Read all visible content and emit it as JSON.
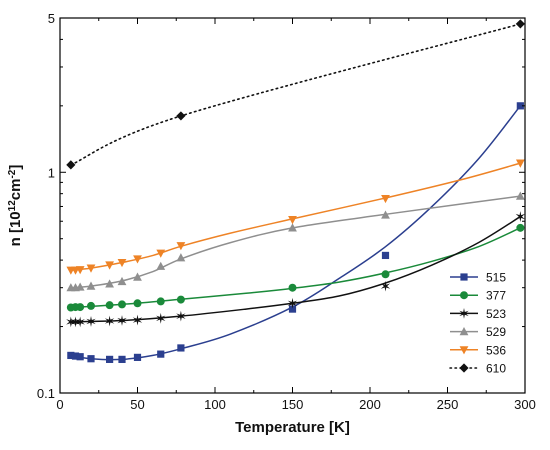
{
  "chart_data": {
    "type": "line",
    "title": "",
    "xlabel": "Temperature [K]",
    "ylabel_parts": {
      "base": "n [10",
      "sup1": "12",
      "mid": "cm",
      "sup2": "-2",
      "end": "]"
    },
    "xlim": [
      0,
      300
    ],
    "ylim": [
      0.1,
      5
    ],
    "yscale": "log",
    "x_ticks": [
      0,
      50,
      100,
      150,
      200,
      250,
      300
    ],
    "y_ticks": [
      {
        "value": 0.1,
        "label": "0.1"
      },
      {
        "value": 1,
        "label": "1"
      },
      {
        "value": 5,
        "label": "5"
      }
    ],
    "legend_position": "bottom-right",
    "series": [
      {
        "name": "515",
        "color": "#2b3f8f",
        "marker": "square",
        "line_style": "solid",
        "points": [
          [
            7,
            0.148
          ],
          [
            10,
            0.147
          ],
          [
            13,
            0.146
          ],
          [
            20,
            0.143
          ],
          [
            32,
            0.142
          ],
          [
            40,
            0.142
          ],
          [
            50,
            0.145
          ],
          [
            65,
            0.15
          ],
          [
            78,
            0.16
          ],
          [
            150,
            0.24
          ],
          [
            210,
            0.42
          ],
          [
            297,
            2.0
          ]
        ],
        "curve": [
          [
            7,
            0.148
          ],
          [
            20,
            0.143
          ],
          [
            40,
            0.142
          ],
          [
            60,
            0.148
          ],
          [
            80,
            0.16
          ],
          [
            110,
            0.185
          ],
          [
            150,
            0.245
          ],
          [
            180,
            0.33
          ],
          [
            210,
            0.46
          ],
          [
            240,
            0.7
          ],
          [
            270,
            1.15
          ],
          [
            297,
            2.0
          ]
        ]
      },
      {
        "name": "377",
        "color": "#1a8a3a",
        "marker": "circle",
        "line_style": "solid",
        "points": [
          [
            7,
            0.244
          ],
          [
            10,
            0.245
          ],
          [
            13,
            0.245
          ],
          [
            20,
            0.248
          ],
          [
            32,
            0.25
          ],
          [
            40,
            0.252
          ],
          [
            50,
            0.255
          ],
          [
            65,
            0.26
          ],
          [
            78,
            0.265
          ],
          [
            150,
            0.3
          ],
          [
            210,
            0.345
          ],
          [
            297,
            0.56
          ]
        ],
        "curve": [
          [
            7,
            0.244
          ],
          [
            40,
            0.252
          ],
          [
            78,
            0.266
          ],
          [
            120,
            0.283
          ],
          [
            150,
            0.298
          ],
          [
            180,
            0.318
          ],
          [
            210,
            0.35
          ],
          [
            240,
            0.395
          ],
          [
            270,
            0.46
          ],
          [
            297,
            0.56
          ]
        ]
      },
      {
        "name": "523",
        "color": "#111111",
        "marker": "star",
        "line_style": "solid",
        "points": [
          [
            7,
            0.21
          ],
          [
            10,
            0.21
          ],
          [
            13,
            0.21
          ],
          [
            20,
            0.211
          ],
          [
            32,
            0.212
          ],
          [
            40,
            0.213
          ],
          [
            50,
            0.214
          ],
          [
            65,
            0.218
          ],
          [
            78,
            0.223
          ],
          [
            150,
            0.255
          ],
          [
            210,
            0.305
          ],
          [
            297,
            0.63
          ]
        ],
        "curve": [
          [
            7,
            0.21
          ],
          [
            40,
            0.213
          ],
          [
            78,
            0.223
          ],
          [
            120,
            0.24
          ],
          [
            150,
            0.255
          ],
          [
            180,
            0.275
          ],
          [
            210,
            0.315
          ],
          [
            240,
            0.38
          ],
          [
            270,
            0.48
          ],
          [
            297,
            0.63
          ]
        ]
      },
      {
        "name": "529",
        "color": "#8f8f8f",
        "marker": "triangle-up",
        "line_style": "solid",
        "points": [
          [
            7,
            0.3
          ],
          [
            10,
            0.3
          ],
          [
            13,
            0.302
          ],
          [
            20,
            0.305
          ],
          [
            32,
            0.312
          ],
          [
            40,
            0.32
          ],
          [
            50,
            0.335
          ],
          [
            65,
            0.375
          ],
          [
            78,
            0.41
          ],
          [
            150,
            0.56
          ],
          [
            210,
            0.64
          ],
          [
            297,
            0.78
          ]
        ],
        "curve": [
          [
            7,
            0.3
          ],
          [
            20,
            0.305
          ],
          [
            40,
            0.322
          ],
          [
            60,
            0.355
          ],
          [
            78,
            0.405
          ],
          [
            110,
            0.48
          ],
          [
            150,
            0.56
          ],
          [
            210,
            0.645
          ],
          [
            260,
            0.72
          ],
          [
            297,
            0.78
          ]
        ]
      },
      {
        "name": "536",
        "color": "#ee8326",
        "marker": "triangle-down",
        "line_style": "solid",
        "points": [
          [
            7,
            0.36
          ],
          [
            10,
            0.36
          ],
          [
            13,
            0.362
          ],
          [
            20,
            0.368
          ],
          [
            32,
            0.38
          ],
          [
            40,
            0.39
          ],
          [
            50,
            0.405
          ],
          [
            65,
            0.43
          ],
          [
            78,
            0.465
          ],
          [
            150,
            0.61
          ],
          [
            210,
            0.76
          ],
          [
            297,
            1.1
          ]
        ],
        "curve": [
          [
            7,
            0.36
          ],
          [
            20,
            0.368
          ],
          [
            40,
            0.39
          ],
          [
            60,
            0.42
          ],
          [
            78,
            0.462
          ],
          [
            110,
            0.53
          ],
          [
            150,
            0.615
          ],
          [
            210,
            0.765
          ],
          [
            260,
            0.93
          ],
          [
            297,
            1.1
          ]
        ]
      },
      {
        "name": "610",
        "color": "#111111",
        "marker": "diamond",
        "line_style": "dotted",
        "points": [
          [
            7,
            1.08
          ],
          [
            78,
            1.8
          ],
          [
            297,
            4.7
          ]
        ],
        "curve": [
          [
            7,
            1.08
          ],
          [
            78,
            1.8
          ],
          [
            297,
            4.7
          ]
        ]
      }
    ]
  }
}
